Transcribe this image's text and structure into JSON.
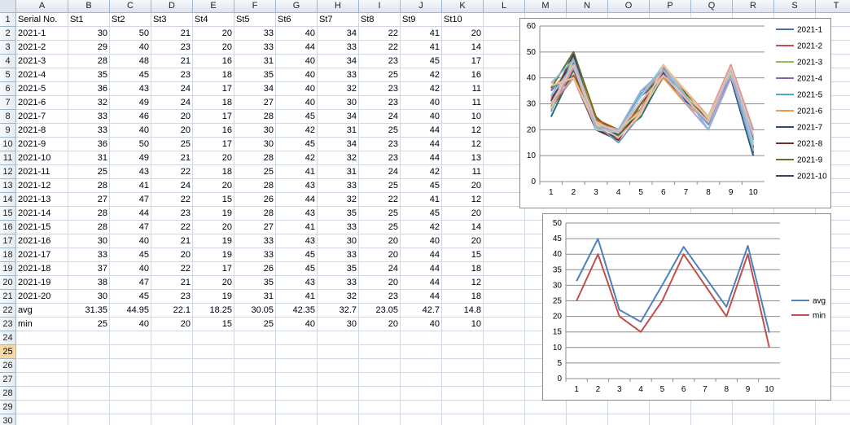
{
  "sheet": {
    "columns": [
      "A",
      "B",
      "C",
      "D",
      "E",
      "F",
      "G",
      "H",
      "I",
      "J",
      "K",
      "L",
      "M",
      "N",
      "O",
      "P",
      "Q",
      "R",
      "S",
      "T"
    ],
    "row_count": 31,
    "selected_row": 25,
    "header": [
      "Serial No.",
      "St1",
      "St2",
      "St3",
      "St4",
      "St5",
      "St6",
      "St7",
      "St8",
      "St9",
      "St10"
    ],
    "rows": [
      [
        "2021-1",
        30,
        50,
        21,
        20,
        33,
        40,
        34,
        22,
        41,
        20
      ],
      [
        "2021-2",
        29,
        40,
        23,
        20,
        33,
        44,
        33,
        22,
        41,
        14
      ],
      [
        "2021-3",
        28,
        48,
        21,
        16,
        31,
        40,
        34,
        23,
        45,
        17
      ],
      [
        "2021-4",
        35,
        45,
        23,
        18,
        35,
        40,
        33,
        25,
        42,
        16
      ],
      [
        "2021-5",
        36,
        43,
        24,
        17,
        34,
        40,
        32,
        23,
        42,
        11
      ],
      [
        "2021-6",
        32,
        49,
        24,
        18,
        27,
        40,
        30,
        23,
        40,
        11
      ],
      [
        "2021-7",
        33,
        46,
        20,
        17,
        28,
        45,
        34,
        24,
        40,
        10
      ],
      [
        "2021-8",
        33,
        40,
        20,
        16,
        30,
        42,
        31,
        25,
        44,
        12
      ],
      [
        "2021-9",
        36,
        50,
        25,
        17,
        30,
        45,
        34,
        23,
        44,
        12
      ],
      [
        "2021-10",
        31,
        49,
        21,
        20,
        28,
        42,
        32,
        23,
        44,
        13
      ],
      [
        "2021-11",
        25,
        43,
        22,
        18,
        25,
        41,
        31,
        24,
        42,
        11
      ],
      [
        "2021-12",
        28,
        41,
        24,
        20,
        28,
        43,
        33,
        25,
        45,
        20
      ],
      [
        "2021-13",
        27,
        47,
        22,
        15,
        26,
        44,
        32,
        22,
        41,
        12
      ],
      [
        "2021-14",
        28,
        44,
        23,
        19,
        28,
        43,
        35,
        25,
        45,
        20
      ],
      [
        "2021-15",
        28,
        47,
        22,
        20,
        27,
        41,
        33,
        25,
        42,
        14
      ],
      [
        "2021-16",
        30,
        40,
        21,
        19,
        33,
        43,
        30,
        20,
        40,
        20
      ],
      [
        "2021-17",
        33,
        45,
        20,
        19,
        33,
        45,
        33,
        20,
        44,
        15
      ],
      [
        "2021-18",
        37,
        40,
        22,
        17,
        26,
        45,
        35,
        24,
        44,
        18
      ],
      [
        "2021-19",
        38,
        47,
        21,
        20,
        35,
        43,
        33,
        20,
        44,
        12
      ],
      [
        "2021-20",
        30,
        45,
        23,
        19,
        31,
        41,
        32,
        23,
        44,
        18
      ]
    ],
    "summary": [
      [
        "avg",
        "31.35",
        "44.95",
        "22.1",
        "18.25",
        "30.05",
        "42.35",
        "32.7",
        "23.05",
        "42.7",
        "14.8"
      ],
      [
        "min",
        "25",
        "40",
        "20",
        "15",
        "25",
        "40",
        "30",
        "20",
        "40",
        "10"
      ]
    ]
  },
  "chart_data": [
    {
      "type": "line",
      "x": [
        1,
        2,
        3,
        4,
        5,
        6,
        7,
        8,
        9,
        10
      ],
      "ylim": [
        0,
        60
      ],
      "yticks": [
        0,
        10,
        20,
        30,
        40,
        50,
        60
      ],
      "grid": true,
      "legend": "right",
      "series": [
        {
          "name": "2021-1",
          "color": "#4a6fa5",
          "values": [
            30,
            50,
            21,
            20,
            33,
            40,
            34,
            22,
            41,
            20
          ]
        },
        {
          "name": "2021-2",
          "color": "#c0504d",
          "values": [
            29,
            40,
            23,
            20,
            33,
            44,
            33,
            22,
            41,
            14
          ]
        },
        {
          "name": "2021-3",
          "color": "#9bbb59",
          "values": [
            28,
            48,
            21,
            16,
            31,
            40,
            34,
            23,
            45,
            17
          ]
        },
        {
          "name": "2021-4",
          "color": "#8064a2",
          "values": [
            35,
            45,
            23,
            18,
            35,
            40,
            33,
            25,
            42,
            16
          ]
        },
        {
          "name": "2021-5",
          "color": "#4bacc6",
          "values": [
            36,
            43,
            24,
            17,
            34,
            40,
            32,
            23,
            42,
            11
          ]
        },
        {
          "name": "2021-6",
          "color": "#f79646",
          "values": [
            32,
            49,
            24,
            18,
            27,
            40,
            30,
            23,
            40,
            11
          ]
        },
        {
          "name": "2021-7",
          "color": "#2c4d75",
          "values": [
            33,
            46,
            20,
            17,
            28,
            45,
            34,
            24,
            40,
            10
          ]
        },
        {
          "name": "2021-8",
          "color": "#772c2a",
          "values": [
            33,
            40,
            20,
            16,
            30,
            42,
            31,
            25,
            44,
            12
          ]
        },
        {
          "name": "2021-9",
          "color": "#5f7530",
          "values": [
            36,
            50,
            25,
            17,
            30,
            45,
            34,
            23,
            44,
            12
          ]
        },
        {
          "name": "2021-10",
          "color": "#4d3b62",
          "values": [
            31,
            49,
            21,
            20,
            28,
            42,
            32,
            23,
            44,
            13
          ]
        },
        {
          "name": "2021-11",
          "color": "#276a7c",
          "values": [
            25,
            43,
            22,
            18,
            25,
            41,
            31,
            24,
            42,
            11
          ]
        },
        {
          "name": "2021-12",
          "color": "#b65708",
          "values": [
            28,
            41,
            24,
            20,
            28,
            43,
            33,
            25,
            45,
            20
          ]
        },
        {
          "name": "2021-13",
          "color": "#729aca",
          "values": [
            27,
            47,
            22,
            15,
            26,
            44,
            32,
            22,
            41,
            12
          ]
        },
        {
          "name": "2021-14",
          "color": "#d99694",
          "values": [
            28,
            44,
            23,
            19,
            28,
            43,
            35,
            25,
            45,
            20
          ]
        },
        {
          "name": "2021-15",
          "color": "#c3d69b",
          "values": [
            28,
            47,
            22,
            20,
            27,
            41,
            33,
            25,
            42,
            14
          ]
        },
        {
          "name": "2021-16",
          "color": "#b3a2c7",
          "values": [
            30,
            40,
            21,
            19,
            33,
            43,
            30,
            20,
            40,
            20
          ]
        },
        {
          "name": "2021-17",
          "color": "#93cddd",
          "values": [
            33,
            45,
            20,
            19,
            33,
            45,
            33,
            20,
            44,
            15
          ]
        },
        {
          "name": "2021-18",
          "color": "#fac090",
          "values": [
            37,
            40,
            22,
            17,
            26,
            45,
            35,
            24,
            44,
            18
          ]
        },
        {
          "name": "2021-19",
          "color": "#95b3d7",
          "values": [
            38,
            47,
            21,
            20,
            35,
            43,
            33,
            20,
            44,
            12
          ]
        },
        {
          "name": "2021-20",
          "color": "#e6b9b8",
          "values": [
            30,
            45,
            23,
            19,
            31,
            41,
            32,
            23,
            44,
            18
          ]
        }
      ],
      "legend_shown": [
        "2021-1",
        "2021-2",
        "2021-3",
        "2021-4",
        "2021-5",
        "2021-6",
        "2021-7",
        "2021-8",
        "2021-9",
        "2021-10"
      ]
    },
    {
      "type": "line",
      "x": [
        1,
        2,
        3,
        4,
        5,
        6,
        7,
        8,
        9,
        10
      ],
      "ylim": [
        0,
        50
      ],
      "yticks": [
        0,
        5,
        10,
        15,
        20,
        25,
        30,
        35,
        40,
        45,
        50
      ],
      "grid": true,
      "legend": "right",
      "series": [
        {
          "name": "avg",
          "color": "#4f81bd",
          "values": [
            31.35,
            44.95,
            22.1,
            18.25,
            30.05,
            42.35,
            32.7,
            23.05,
            42.7,
            14.8
          ]
        },
        {
          "name": "min",
          "color": "#c0504d",
          "values": [
            25,
            40,
            20,
            15,
            25,
            40,
            30,
            20,
            40,
            10
          ]
        }
      ],
      "legend_shown": [
        "avg",
        "min"
      ]
    }
  ]
}
